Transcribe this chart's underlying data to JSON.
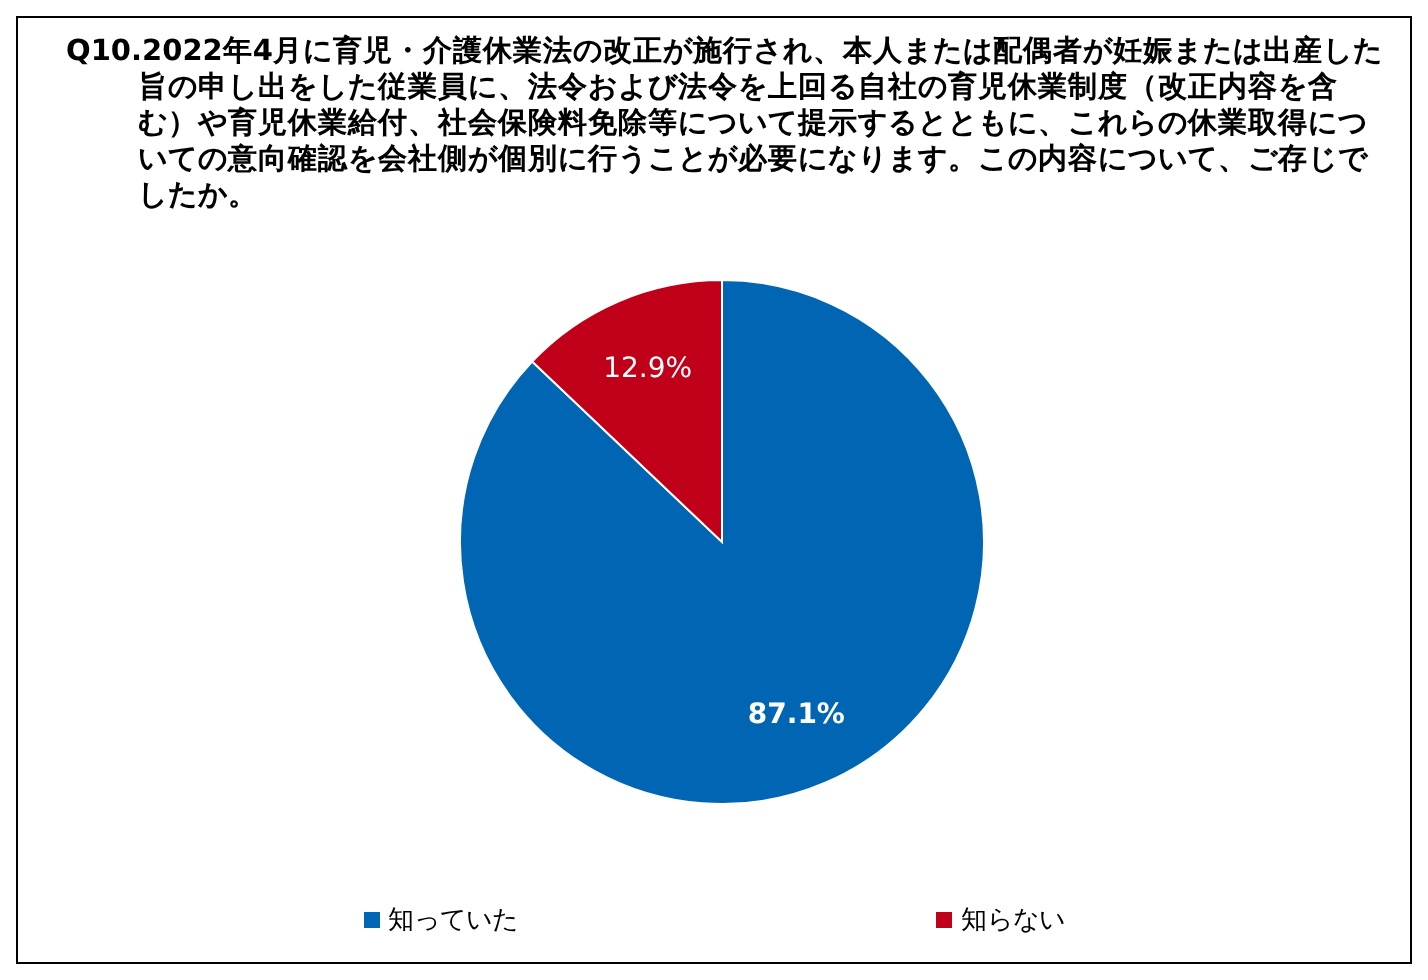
{
  "chart_data": {
    "type": "pie",
    "title": "Q10.2022年4月に育児・介護休業法の改正が施行され、本人または配偶者が妊娠または出産した旨の申し出をした従業員に、法令および法令を上回る自社の育児休業制度（改正内容を含む）や育児休業給付、社会保険料免除等について提示するとともに、これらの休業取得についての意向確認を会社側が個別に行うことが必要になります。この内容について、ご存じでしたか。",
    "categories": [
      "知っていた",
      "知らない"
    ],
    "values": [
      87.1,
      12.9
    ],
    "value_labels": [
      "87.1%",
      "12.9%"
    ],
    "colors": [
      "#0066b3",
      "#c00018"
    ],
    "legend": "bottom"
  }
}
